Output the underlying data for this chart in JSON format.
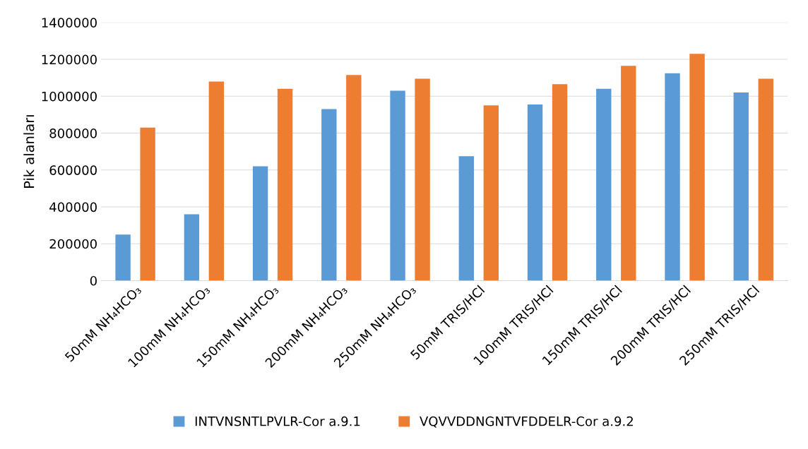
{
  "chart_data": {
    "type": "bar",
    "ylabel": "Pik alanları",
    "categories": [
      "50mM NH₄HCO₃",
      "100mM NH₄HCO₃",
      "150mM NH₄HCO₃",
      "200mM NH₄HCO₃",
      "250mM NH₄HCO₃",
      "50mM TRIS/HCl",
      "100mM TRIS/HCl",
      "150mM TRIS/HCl",
      "200mM TRIS/HCl",
      "250mM TRIS/HCl"
    ],
    "series": [
      {
        "name": "INTVNSNTLPVLR-Cor a.9.1",
        "color": "#5b9bd5",
        "values": [
          250000,
          360000,
          620000,
          930000,
          1030000,
          675000,
          955000,
          1040000,
          1125000,
          1020000
        ]
      },
      {
        "name": "VQVVDDNGNTVFDDELR-Cor a.9.2",
        "color": "#ed7d31",
        "values": [
          830000,
          1080000,
          1040000,
          1115000,
          1095000,
          950000,
          1065000,
          1165000,
          1230000,
          1095000
        ]
      }
    ],
    "ylim": [
      0,
      1400000
    ],
    "yticks": [
      0,
      200000,
      400000,
      600000,
      800000,
      1000000,
      1200000,
      1400000
    ],
    "grid": "y",
    "legend": "bottom"
  }
}
